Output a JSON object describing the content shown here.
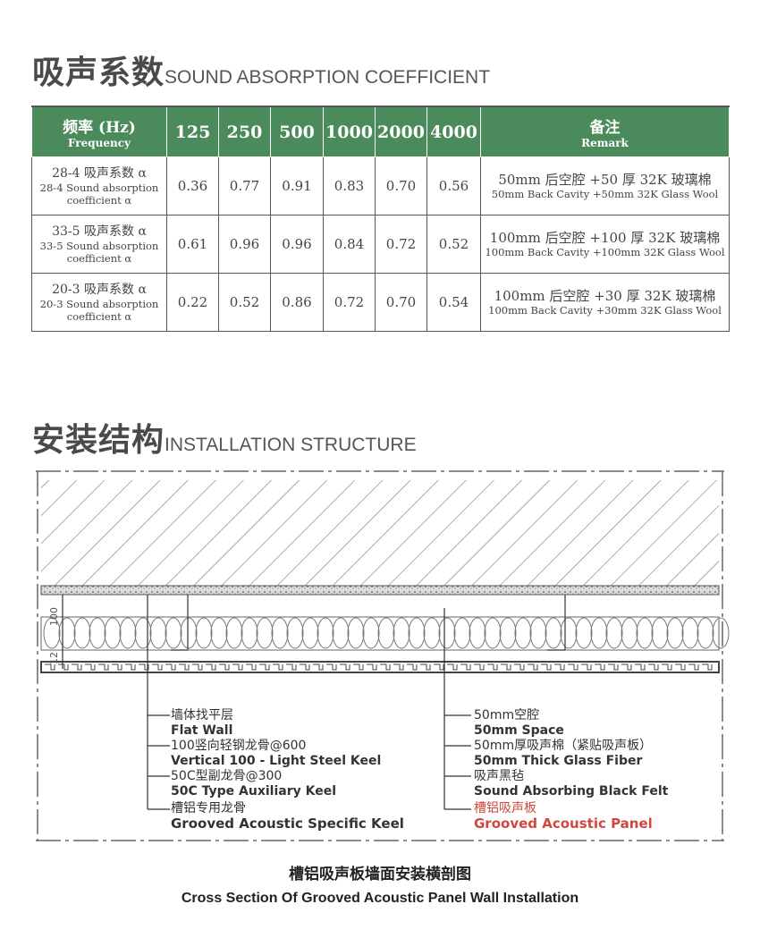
{
  "section1": {
    "title_cn": "吸声系数",
    "title_en": "SOUND ABSORPTION COEFFICIENT"
  },
  "table": {
    "header": {
      "freq_cn": "频率 (Hz)",
      "freq_en": "Frequency",
      "frequencies": [
        "125",
        "250",
        "500",
        "1000",
        "2000",
        "4000"
      ],
      "remark_cn": "备注",
      "remark_en": "Remark"
    },
    "rows": [
      {
        "name_cn": "28-4 吸声系数 α",
        "name_en": "28-4 Sound absorption coefficient α",
        "values": [
          "0.36",
          "0.77",
          "0.91",
          "0.83",
          "0.70",
          "0.56"
        ],
        "remark_cn": "50mm 后空腔 +50 厚 32K 玻璃棉",
        "remark_en": "50mm Back Cavity +50mm 32K Glass Wool"
      },
      {
        "name_cn": "33-5 吸声系数 α",
        "name_en": "33-5 Sound absorption coefficient α",
        "values": [
          "0.61",
          "0.96",
          "0.96",
          "0.84",
          "0.72",
          "0.52"
        ],
        "remark_cn": "100mm 后空腔 +100 厚 32K 玻璃棉",
        "remark_en": "100mm Back Cavity +100mm 32K Glass Wool"
      },
      {
        "name_cn": "20-3 吸声系数 α",
        "name_en": "20-3 Sound absorption coefficient α",
        "values": [
          "0.22",
          "0.52",
          "0.86",
          "0.72",
          "0.70",
          "0.54"
        ],
        "remark_cn": "100mm 后空腔 +30 厚 32K 玻璃棉",
        "remark_en": "100mm Back Cavity +30mm 32K Glass Wool"
      }
    ]
  },
  "section2": {
    "title_cn": "安装结构",
    "title_en": "INSTALLATION STRUCTURE"
  },
  "diagram": {
    "dims": [
      "100",
      "12"
    ],
    "left_labels": [
      {
        "cn": "墙体找平层",
        "en": "Flat Wall"
      },
      {
        "cn": "100竖向轻钢龙骨@600",
        "en": "Vertical 100 -   Light Steel Keel"
      },
      {
        "cn": "50C型副龙骨@300",
        "en": "50C Type Auxiliary Keel"
      },
      {
        "cn": "槽铝专用龙骨",
        "en": "Grooved Acoustic Specific Keel"
      }
    ],
    "right_labels": [
      {
        "cn": "50mm空腔",
        "en": "50mm Space"
      },
      {
        "cn": "50mm厚吸声棉（紧贴吸声板）",
        "en": "50mm Thick Glass Fiber"
      },
      {
        "cn": "吸声黑毡",
        "en": "Sound Absorbing Black Felt"
      },
      {
        "cn": "槽铝吸声板",
        "en": "Grooved Acoustic Panel"
      }
    ],
    "highlight_color": "#d0473d",
    "caption_cn": "槽铝吸声板墙面安装横剖图",
    "caption_en": "Cross Section Of Grooved Acoustic Panel Wall Installation"
  }
}
